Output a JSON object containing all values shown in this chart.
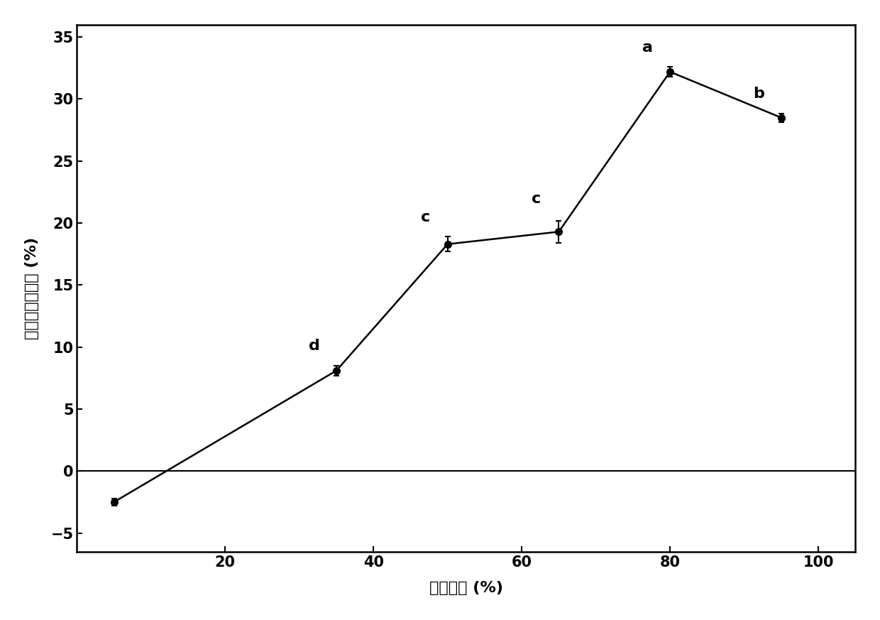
{
  "x": [
    5,
    35,
    50,
    65,
    80,
    95
  ],
  "y": [
    -2.5,
    8.1,
    18.3,
    19.3,
    32.2,
    28.5
  ],
  "yerr": [
    0.3,
    0.4,
    0.6,
    0.9,
    0.4,
    0.35
  ],
  "labels": [
    "",
    "d",
    "c",
    "c",
    "a",
    "b"
  ],
  "label_offsets_x": [
    0,
    -3,
    -3,
    -3,
    -3,
    -3
  ],
  "label_offsets_y": [
    0.5,
    1.0,
    1.0,
    1.2,
    1.0,
    1.0
  ],
  "xlabel": "乙醇浓度 (%)",
  "ylabel": "酰氧酸酶抑制率 (%)",
  "xlim": [
    0,
    105
  ],
  "ylim": [
    -6.5,
    36
  ],
  "yticks": [
    -5,
    0,
    5,
    10,
    15,
    20,
    25,
    30,
    35
  ],
  "xticks": [
    20,
    40,
    60,
    80,
    100
  ],
  "line_color": "#000000",
  "marker_color": "#000000",
  "marker_size": 7,
  "line_width": 1.8,
  "label_fontsize": 16,
  "axis_fontsize": 16,
  "tick_fontsize": 15
}
